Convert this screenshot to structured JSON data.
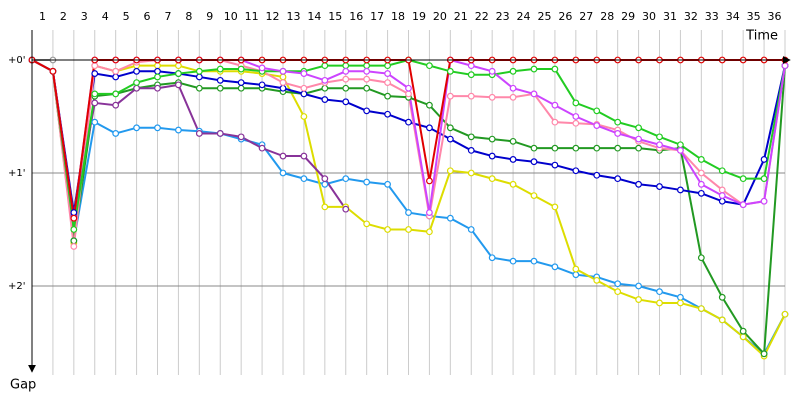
{
  "chart_data": {
    "type": "line",
    "x_label": "Time",
    "y_label": "Gap",
    "x": [
      0,
      1,
      2,
      3,
      4,
      5,
      6,
      7,
      8,
      9,
      10,
      11,
      12,
      13,
      14,
      15,
      16,
      17,
      18,
      19,
      20,
      21,
      22,
      23,
      24,
      25,
      26,
      27,
      28,
      29,
      30,
      31,
      32,
      33,
      34,
      35,
      36
    ],
    "xlim": [
      0,
      36
    ],
    "xticks": [
      1,
      2,
      3,
      4,
      5,
      6,
      7,
      8,
      9,
      10,
      11,
      12,
      13,
      14,
      15,
      16,
      17,
      18,
      19,
      20,
      21,
      22,
      23,
      24,
      25,
      26,
      27,
      28,
      29,
      30,
      31,
      32,
      33,
      34,
      35,
      36
    ],
    "ylim": [
      -0.25,
      2.75
    ],
    "y_inverted": true,
    "yticks": [
      {
        "value": 0,
        "label": "+0'"
      },
      {
        "value": 1,
        "label": "+1'"
      },
      {
        "value": 2,
        "label": "+2'"
      }
    ],
    "grid": true,
    "series": [
      {
        "name": "grey",
        "color": "#999999",
        "values": [
          0,
          0,
          null,
          null,
          null,
          null,
          null,
          null,
          null,
          null,
          null,
          null,
          null,
          null,
          null,
          null,
          null,
          null,
          null,
          null,
          null,
          null,
          null,
          null,
          null,
          null,
          null,
          null,
          null,
          null,
          null,
          null,
          null,
          null,
          null,
          null,
          null
        ]
      },
      {
        "name": "light-blue",
        "color": "#2299ee",
        "values": [
          0,
          0.1,
          1.6,
          0.55,
          0.65,
          0.6,
          0.6,
          0.62,
          0.63,
          0.65,
          0.7,
          0.75,
          1.0,
          1.05,
          1.1,
          1.05,
          1.08,
          1.1,
          1.35,
          1.38,
          1.4,
          1.5,
          1.75,
          1.78,
          1.78,
          1.83,
          1.9,
          1.92,
          1.98,
          2.0,
          2.05,
          2.1,
          2.2,
          2.3,
          2.45,
          2.6,
          2.25
        ]
      },
      {
        "name": "yellow",
        "color": "#dddd00",
        "values": [
          0,
          0.1,
          1.62,
          0.05,
          0.1,
          0.05,
          0.05,
          0.05,
          0.1,
          0.1,
          0.1,
          0.12,
          0.15,
          0.5,
          1.3,
          1.3,
          1.45,
          1.5,
          1.5,
          1.52,
          0.98,
          1.0,
          1.05,
          1.1,
          1.2,
          1.3,
          1.85,
          1.95,
          2.05,
          2.12,
          2.15,
          2.15,
          2.2,
          2.3,
          2.45,
          2.62,
          2.25
        ]
      },
      {
        "name": "dark-green",
        "color": "#229922",
        "values": [
          0,
          0.1,
          1.6,
          0.32,
          0.3,
          0.25,
          0.22,
          0.2,
          0.25,
          0.25,
          0.25,
          0.25,
          0.28,
          0.3,
          0.25,
          0.25,
          0.25,
          0.32,
          0.33,
          0.4,
          0.6,
          0.68,
          0.7,
          0.72,
          0.78,
          0.78,
          0.78,
          0.78,
          0.78,
          0.78,
          0.8,
          0.78,
          1.75,
          2.1,
          2.4,
          2.6,
          0.05
        ]
      },
      {
        "name": "dark-purple",
        "color": "#883399",
        "values": [
          0,
          0.1,
          1.38,
          0.38,
          0.4,
          0.25,
          0.25,
          0.22,
          0.65,
          0.65,
          0.68,
          0.78,
          0.85,
          0.85,
          1.05,
          1.32,
          null,
          null,
          null,
          null,
          null,
          null,
          null,
          null,
          null,
          null,
          null,
          null,
          null,
          null,
          null,
          null,
          null,
          null,
          null,
          null,
          null
        ]
      },
      {
        "name": "navy",
        "color": "#0000cc",
        "values": [
          0,
          0.1,
          1.35,
          0.12,
          0.15,
          0.1,
          0.1,
          0.12,
          0.15,
          0.18,
          0.2,
          0.22,
          0.25,
          0.3,
          0.35,
          0.37,
          0.45,
          0.48,
          0.55,
          0.6,
          0.7,
          0.8,
          0.85,
          0.88,
          0.9,
          0.93,
          0.98,
          1.02,
          1.05,
          1.1,
          1.12,
          1.15,
          1.18,
          1.25,
          1.28,
          0.88,
          0.05
        ]
      },
      {
        "name": "pink",
        "color": "#ff88aa",
        "values": [
          0,
          0.1,
          1.65,
          0.05,
          0.1,
          0.02,
          0,
          0,
          0,
          0,
          0.05,
          0.1,
          0.2,
          0.25,
          0.2,
          0.17,
          0.17,
          0.2,
          0.3,
          1.38,
          0.32,
          0.32,
          0.33,
          0.33,
          0.3,
          0.55,
          0.56,
          0.57,
          0.62,
          0.72,
          0.78,
          0.8,
          1.0,
          1.15,
          1.28,
          1.25,
          0.05
        ]
      },
      {
        "name": "green",
        "color": "#22cc22",
        "values": [
          0,
          0.1,
          1.5,
          0.3,
          0.3,
          0.2,
          0.15,
          0.12,
          0.1,
          0.08,
          0.08,
          0.1,
          0.1,
          0.1,
          0.05,
          0.05,
          0.05,
          0.05,
          0,
          0.05,
          0.1,
          0.13,
          0.13,
          0.1,
          0.08,
          0.08,
          0.38,
          0.45,
          0.55,
          0.6,
          0.68,
          0.75,
          0.88,
          0.98,
          1.05,
          1.05,
          0.05
        ]
      },
      {
        "name": "magenta",
        "color": "#cc44ff",
        "values": [
          0,
          0.1,
          1.4,
          0,
          0,
          0,
          0,
          0,
          0,
          0,
          0,
          0.07,
          0.1,
          0.12,
          0.18,
          0.1,
          0.1,
          0.12,
          0.25,
          1.35,
          0,
          0.05,
          0.1,
          0.25,
          0.3,
          0.4,
          0.5,
          0.58,
          0.65,
          0.7,
          0.75,
          0.8,
          1.1,
          1.2,
          1.28,
          1.25,
          0.05
        ]
      },
      {
        "name": "red",
        "color": "#e00000",
        "values": [
          0,
          0.1,
          1.4,
          0,
          0,
          0,
          0,
          0,
          0,
          0,
          0,
          0,
          0,
          0,
          0,
          0,
          0,
          0,
          0,
          1.07,
          0,
          0,
          0,
          0,
          0,
          0,
          0,
          0,
          0,
          0,
          0,
          0,
          0,
          0,
          0,
          0,
          0
        ]
      }
    ]
  }
}
